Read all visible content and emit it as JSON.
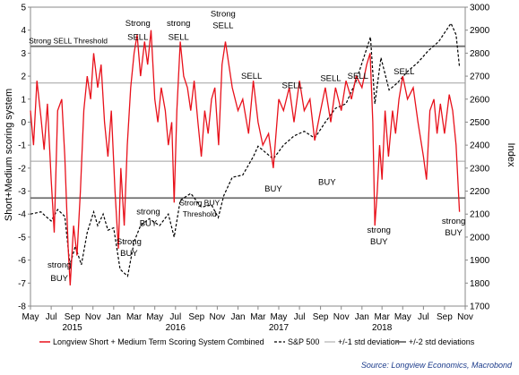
{
  "chart_data": {
    "type": "line",
    "xlabel": "",
    "ylabel_left": "Short+Medium scoring system",
    "ylabel_right": "Index",
    "x_range": [
      "2015-05-01",
      "2018-11-01"
    ],
    "ylim_left": [
      -8,
      5
    ],
    "ylim_right": [
      1700,
      3000
    ],
    "yticks_left": [
      "-8",
      "-7",
      "-6",
      "-5",
      "-4",
      "-3",
      "-2",
      "-1",
      "0",
      "1",
      "2",
      "3",
      "4",
      "5"
    ],
    "yticks_right": [
      "1700",
      "1800",
      "1900",
      "2000",
      "2100",
      "2200",
      "2300",
      "2400",
      "2500",
      "2600",
      "2700",
      "2800",
      "2900",
      "3000"
    ],
    "month_ticks": [
      "May",
      "Jul",
      "Sep",
      "Nov",
      "Jan",
      "Mar",
      "May",
      "Jul",
      "Sep",
      "Nov",
      "Jan",
      "Mar",
      "May",
      "Jul",
      "Sep",
      "Nov",
      "Jan",
      "Mar",
      "May",
      "Jul",
      "Sep",
      "Nov"
    ],
    "year_labels": [
      {
        "label": "2015",
        "date": "2015-09-01"
      },
      {
        "label": "2016",
        "date": "2016-07-01"
      },
      {
        "label": "2017",
        "date": "2017-05-01"
      },
      {
        "label": "2018",
        "date": "2018-03-01"
      }
    ],
    "threshold_lines": [
      {
        "value": 3.3,
        "style": "2 std"
      },
      {
        "value": 1.7,
        "style": "1 std"
      },
      {
        "value": -1.7,
        "style": "1 std"
      },
      {
        "value": -3.3,
        "style": "2 std"
      }
    ],
    "series": [
      {
        "name": "Longview Short + Medium Term Scoring System Combined",
        "color": "#e8111b",
        "axis": "left",
        "points": [
          [
            "2015-05-01",
            0.5
          ],
          [
            "2015-05-10",
            -1.0
          ],
          [
            "2015-05-20",
            1.8
          ],
          [
            "2015-06-01",
            0.2
          ],
          [
            "2015-06-10",
            -1.2
          ],
          [
            "2015-06-20",
            0.8
          ],
          [
            "2015-07-01",
            -2.5
          ],
          [
            "2015-07-10",
            -4.8
          ],
          [
            "2015-07-20",
            0.5
          ],
          [
            "2015-08-01",
            1.0
          ],
          [
            "2015-08-10",
            -1.5
          ],
          [
            "2015-08-20",
            -5.5
          ],
          [
            "2015-08-26",
            -7.1
          ],
          [
            "2015-09-05",
            -4.5
          ],
          [
            "2015-09-15",
            -5.8
          ],
          [
            "2015-09-25",
            -3.0
          ],
          [
            "2015-10-05",
            0.5
          ],
          [
            "2015-10-15",
            2.0
          ],
          [
            "2015-10-25",
            1.0
          ],
          [
            "2015-11-03",
            3.0
          ],
          [
            "2015-11-15",
            1.5
          ],
          [
            "2015-11-25",
            2.5
          ],
          [
            "2015-12-05",
            0.0
          ],
          [
            "2015-12-15",
            -1.5
          ],
          [
            "2015-12-25",
            0.5
          ],
          [
            "2016-01-05",
            -3.0
          ],
          [
            "2016-01-15",
            -5.5
          ],
          [
            "2016-01-22",
            -2.0
          ],
          [
            "2016-02-01",
            -4.5
          ],
          [
            "2016-02-10",
            -1.0
          ],
          [
            "2016-02-20",
            1.5
          ],
          [
            "2016-03-01",
            3.0
          ],
          [
            "2016-03-10",
            3.8
          ],
          [
            "2016-03-20",
            2.0
          ],
          [
            "2016-04-01",
            3.5
          ],
          [
            "2016-04-10",
            2.5
          ],
          [
            "2016-04-20",
            4.0
          ],
          [
            "2016-05-01",
            1.0
          ],
          [
            "2016-05-10",
            0.0
          ],
          [
            "2016-05-20",
            1.5
          ],
          [
            "2016-06-01",
            0.5
          ],
          [
            "2016-06-10",
            -1.0
          ],
          [
            "2016-06-20",
            0.0
          ],
          [
            "2016-06-27",
            -3.5
          ],
          [
            "2016-07-05",
            0.5
          ],
          [
            "2016-07-15",
            3.5
          ],
          [
            "2016-07-25",
            2.0
          ],
          [
            "2016-08-05",
            1.5
          ],
          [
            "2016-08-15",
            0.5
          ],
          [
            "2016-08-25",
            1.8
          ],
          [
            "2016-09-05",
            0.0
          ],
          [
            "2016-09-15",
            -1.5
          ],
          [
            "2016-09-25",
            0.5
          ],
          [
            "2016-10-05",
            -0.5
          ],
          [
            "2016-10-15",
            1.0
          ],
          [
            "2016-10-25",
            1.5
          ],
          [
            "2016-11-05",
            -1.0
          ],
          [
            "2016-11-15",
            2.5
          ],
          [
            "2016-11-25",
            3.5
          ],
          [
            "2016-12-05",
            2.5
          ],
          [
            "2016-12-15",
            1.5
          ],
          [
            "2017-01-01",
            0.5
          ],
          [
            "2017-01-15",
            1.0
          ],
          [
            "2017-02-01",
            -0.5
          ],
          [
            "2017-02-15",
            1.8
          ],
          [
            "2017-03-01",
            0.0
          ],
          [
            "2017-03-15",
            -1.0
          ],
          [
            "2017-04-01",
            -0.5
          ],
          [
            "2017-04-15",
            -2.0
          ],
          [
            "2017-05-01",
            1.0
          ],
          [
            "2017-05-15",
            0.5
          ],
          [
            "2017-06-01",
            1.5
          ],
          [
            "2017-06-15",
            0.0
          ],
          [
            "2017-07-01",
            1.8
          ],
          [
            "2017-07-15",
            0.5
          ],
          [
            "2017-08-01",
            1.0
          ],
          [
            "2017-08-15",
            -0.8
          ],
          [
            "2017-09-01",
            0.5
          ],
          [
            "2017-09-15",
            1.5
          ],
          [
            "2017-10-01",
            0.0
          ],
          [
            "2017-10-15",
            1.5
          ],
          [
            "2017-11-01",
            0.5
          ],
          [
            "2017-11-15",
            1.8
          ],
          [
            "2017-12-01",
            1.0
          ],
          [
            "2017-12-15",
            2.0
          ],
          [
            "2018-01-01",
            1.5
          ],
          [
            "2018-01-15",
            2.5
          ],
          [
            "2018-01-25",
            3.0
          ],
          [
            "2018-02-02",
            0.0
          ],
          [
            "2018-02-08",
            -4.5
          ],
          [
            "2018-02-15",
            -3.0
          ],
          [
            "2018-02-22",
            -1.0
          ],
          [
            "2018-03-01",
            -2.5
          ],
          [
            "2018-03-10",
            0.5
          ],
          [
            "2018-03-20",
            -1.5
          ],
          [
            "2018-04-01",
            0.5
          ],
          [
            "2018-04-10",
            -0.5
          ],
          [
            "2018-04-20",
            1.0
          ],
          [
            "2018-05-01",
            2.0
          ],
          [
            "2018-05-15",
            1.0
          ],
          [
            "2018-06-01",
            1.5
          ],
          [
            "2018-06-15",
            0.0
          ],
          [
            "2018-07-01",
            -1.5
          ],
          [
            "2018-07-10",
            -2.5
          ],
          [
            "2018-07-20",
            0.5
          ],
          [
            "2018-08-01",
            1.0
          ],
          [
            "2018-08-10",
            -0.5
          ],
          [
            "2018-08-20",
            0.8
          ],
          [
            "2018-09-01",
            -0.5
          ],
          [
            "2018-09-15",
            1.2
          ],
          [
            "2018-09-25",
            0.5
          ],
          [
            "2018-10-05",
            -1.0
          ],
          [
            "2018-10-15",
            -3.9
          ]
        ]
      },
      {
        "name": "S&P 500",
        "color": "#000000",
        "axis": "right",
        "dashed": true,
        "points": [
          [
            "2015-05-01",
            2100
          ],
          [
            "2015-06-01",
            2110
          ],
          [
            "2015-06-15",
            2090
          ],
          [
            "2015-07-01",
            2070
          ],
          [
            "2015-07-20",
            2120
          ],
          [
            "2015-08-10",
            2090
          ],
          [
            "2015-08-25",
            1880
          ],
          [
            "2015-09-10",
            1960
          ],
          [
            "2015-09-28",
            1880
          ],
          [
            "2015-10-15",
            2020
          ],
          [
            "2015-11-03",
            2110
          ],
          [
            "2015-11-15",
            2050
          ],
          [
            "2015-12-01",
            2100
          ],
          [
            "2015-12-15",
            2030
          ],
          [
            "2016-01-01",
            2040
          ],
          [
            "2016-01-20",
            1860
          ],
          [
            "2016-02-11",
            1830
          ],
          [
            "2016-03-01",
            1980
          ],
          [
            "2016-03-20",
            2050
          ],
          [
            "2016-04-15",
            2080
          ],
          [
            "2016-05-15",
            2050
          ],
          [
            "2016-06-10",
            2100
          ],
          [
            "2016-06-27",
            2000
          ],
          [
            "2016-07-15",
            2160
          ],
          [
            "2016-08-15",
            2190
          ],
          [
            "2016-09-15",
            2130
          ],
          [
            "2016-10-15",
            2140
          ],
          [
            "2016-11-04",
            2085
          ],
          [
            "2016-11-20",
            2180
          ],
          [
            "2016-12-15",
            2260
          ],
          [
            "2017-01-15",
            2270
          ],
          [
            "2017-02-15",
            2350
          ],
          [
            "2017-03-01",
            2395
          ],
          [
            "2017-04-15",
            2340
          ],
          [
            "2017-05-15",
            2400
          ],
          [
            "2017-06-15",
            2440
          ],
          [
            "2017-07-15",
            2460
          ],
          [
            "2017-08-15",
            2430
          ],
          [
            "2017-09-15",
            2500
          ],
          [
            "2017-10-15",
            2560
          ],
          [
            "2017-11-15",
            2580
          ],
          [
            "2017-12-15",
            2680
          ],
          [
            "2018-01-26",
            2870
          ],
          [
            "2018-02-08",
            2580
          ],
          [
            "2018-02-26",
            2780
          ],
          [
            "2018-03-22",
            2640
          ],
          [
            "2018-04-15",
            2670
          ],
          [
            "2018-05-15",
            2720
          ],
          [
            "2018-06-15",
            2760
          ],
          [
            "2018-07-15",
            2810
          ],
          [
            "2018-08-15",
            2850
          ],
          [
            "2018-09-20",
            2930
          ],
          [
            "2018-10-05",
            2880
          ],
          [
            "2018-10-15",
            2740
          ]
        ]
      }
    ],
    "annotations": [
      {
        "text": "Strong SELL Threshold",
        "date": "2015-08-20",
        "value": 3.55
      },
      {
        "text": "Strong",
        "date": "2016-03-12",
        "value": 4.3
      },
      {
        "text": "SELL",
        "date": "2016-03-12",
        "value": 3.7
      },
      {
        "text": "strong",
        "date": "2016-07-10",
        "value": 4.3
      },
      {
        "text": "SELL",
        "date": "2016-07-10",
        "value": 3.7
      },
      {
        "text": "Strong",
        "date": "2016-11-18",
        "value": 4.7
      },
      {
        "text": "SELL",
        "date": "2016-11-18",
        "value": 4.2
      },
      {
        "text": "SELL",
        "date": "2017-02-10",
        "value": 2.0
      },
      {
        "text": "SELL",
        "date": "2017-06-10",
        "value": 1.6
      },
      {
        "text": "SELL",
        "date": "2017-10-01",
        "value": 1.9
      },
      {
        "text": "SELL",
        "date": "2017-12-20",
        "value": 2.0
      },
      {
        "text": "SELL",
        "date": "2018-05-05",
        "value": 2.2
      },
      {
        "text": "BUY",
        "date": "2017-04-15",
        "value": -2.9
      },
      {
        "text": "BUY",
        "date": "2017-09-20",
        "value": -2.6
      },
      {
        "text": "strong",
        "date": "2016-04-12",
        "value": -3.9
      },
      {
        "text": "BUY",
        "date": "2016-04-12",
        "value": -4.4
      },
      {
        "text": "Strong",
        "date": "2016-02-15",
        "value": -5.2
      },
      {
        "text": "BUY",
        "date": "2016-02-15",
        "value": -5.7
      },
      {
        "text": "strong",
        "date": "2015-07-25",
        "value": -6.2
      },
      {
        "text": "BUY",
        "date": "2015-07-25",
        "value": -6.8
      },
      {
        "text": "Strong BUY",
        "date": "2016-09-10",
        "value": -3.5
      },
      {
        "text": "Threshold",
        "date": "2016-09-10",
        "value": -4.0
      },
      {
        "text": "strong",
        "date": "2018-02-20",
        "value": -4.7
      },
      {
        "text": "BUY",
        "date": "2018-02-20",
        "value": -5.2
      },
      {
        "text": "strong",
        "date": "2018-09-28",
        "value": -4.3
      },
      {
        "text": "BUY",
        "date": "2018-09-28",
        "value": -4.8
      }
    ],
    "legend": [
      {
        "label": "Longview Short + Medium Term Scoring System Combined",
        "style": "red-solid"
      },
      {
        "label": "S&P 500",
        "style": "black-dashed"
      },
      {
        "label": "+/-1 std deviation",
        "style": "gray-thin"
      },
      {
        "label": "+/-2 std deviations",
        "style": "gray-thick"
      }
    ],
    "legend_placement": "bottom",
    "source": "Source: Longview Economics, Macrobond"
  }
}
